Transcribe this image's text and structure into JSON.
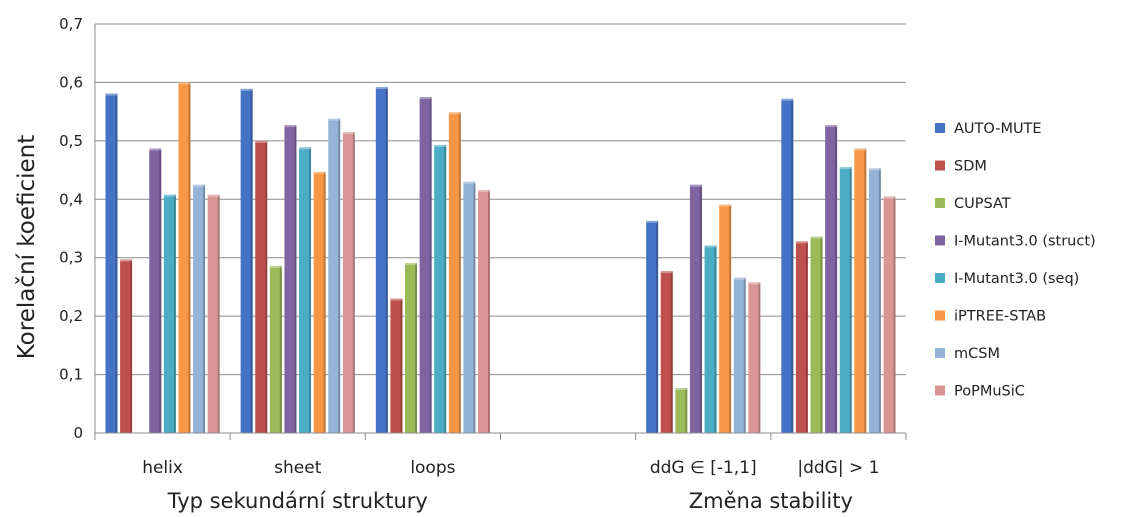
{
  "chart_data": {
    "type": "bar",
    "ylabel": "Korelační koeficient",
    "ylim": [
      0,
      0.7
    ],
    "yticks": [
      "0",
      "0,1",
      "0,2",
      "0,3",
      "0,4",
      "0,5",
      "0,6",
      "0,7"
    ],
    "grid": true,
    "legend_position": "right",
    "categories": [
      "helix",
      "sheet",
      "loops",
      "",
      "ddG ∈ [-1,1]",
      "|ddG| > 1"
    ],
    "groups": [
      {
        "label": "Typ sekundární struktury",
        "categories": [
          "helix",
          "sheet",
          "loops"
        ]
      },
      {
        "label": "Změna stability",
        "categories": [
          "ddG ∈ [-1,1]",
          "|ddG| > 1"
        ]
      }
    ],
    "series": [
      {
        "name": "AUTO-MUTE",
        "color": "#4472c4",
        "values": [
          0.581,
          0.589,
          0.592,
          null,
          0.363,
          0.572
        ]
      },
      {
        "name": "SDM",
        "color": "#c0504d",
        "values": [
          0.297,
          0.5,
          0.23,
          null,
          0.277,
          0.328
        ]
      },
      {
        "name": "CUPSAT",
        "color": "#9bbb59",
        "values": [
          null,
          0.286,
          0.291,
          null,
          0.077,
          0.336
        ]
      },
      {
        "name": "I-Mutant3.0 (struct)",
        "color": "#8064a2",
        "values": [
          0.487,
          0.527,
          0.575,
          null,
          0.425,
          0.527
        ]
      },
      {
        "name": "I-Mutant3.0 (seq)",
        "color": "#4bacc6",
        "values": [
          0.408,
          0.489,
          0.493,
          null,
          0.321,
          0.455
        ]
      },
      {
        "name": "iPTREE-STAB",
        "color": "#f79646",
        "values": [
          0.6,
          0.447,
          0.549,
          null,
          0.391,
          0.487
        ]
      },
      {
        "name": "mCSM",
        "color": "#95b3d7",
        "values": [
          0.425,
          0.538,
          0.43,
          null,
          0.266,
          0.453
        ]
      },
      {
        "name": "PoPMuSiC",
        "color": "#d99694",
        "values": [
          0.408,
          0.515,
          0.416,
          null,
          0.258,
          0.405
        ]
      }
    ]
  }
}
